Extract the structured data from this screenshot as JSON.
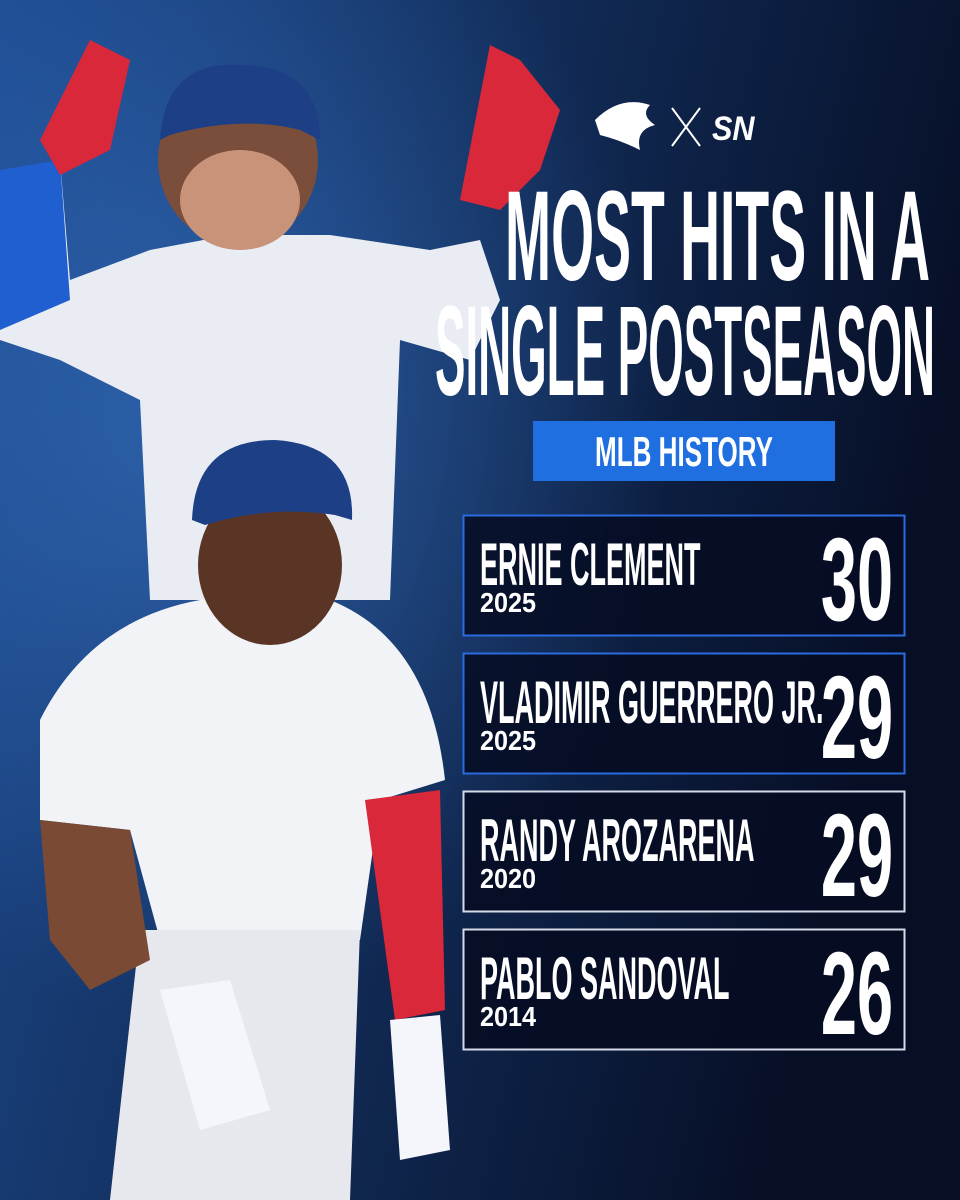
{
  "header": {
    "partner_logo": "SN",
    "title_lines": [
      "MOST HITS IN A",
      "SINGLE POSTSEASON"
    ],
    "badge": "MLB HISTORY"
  },
  "rows": [
    {
      "name": "ERNIE CLEMENT",
      "year": "2025",
      "hits": 30
    },
    {
      "name": "VLADIMIR GUERRERO JR.",
      "year": "2025",
      "hits": 29
    },
    {
      "name": "RANDY AROZARENA",
      "year": "2020",
      "hits": 29
    },
    {
      "name": "PABLO SANDOVAL",
      "year": "2014",
      "hits": 26
    }
  ]
}
